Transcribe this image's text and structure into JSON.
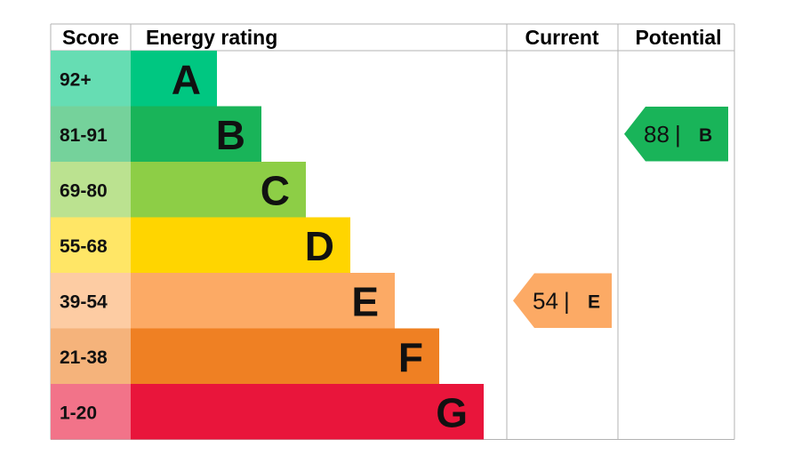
{
  "chart_data": {
    "type": "table",
    "headers": {
      "score": "Score",
      "rating": "Energy rating",
      "current": "Current",
      "potential": "Potential"
    },
    "bands": [
      {
        "letter": "A",
        "range": "92+",
        "color": "#00c781",
        "score_bg": "#66ddb3"
      },
      {
        "letter": "B",
        "range": "81-91",
        "color": "#19b459",
        "score_bg": "#75d29b"
      },
      {
        "letter": "C",
        "range": "69-80",
        "color": "#8dce46",
        "score_bg": "#bbe290"
      },
      {
        "letter": "D",
        "range": "55-68",
        "color": "#ffd500",
        "score_bg": "#ffe666"
      },
      {
        "letter": "E",
        "range": "39-54",
        "color": "#fcaa65",
        "score_bg": "#fdcca3"
      },
      {
        "letter": "F",
        "range": "21-38",
        "color": "#ef8023",
        "score_bg": "#f5b37b"
      },
      {
        "letter": "G",
        "range": "1-20",
        "color": "#e9153b",
        "score_bg": "#f27389"
      }
    ],
    "current": {
      "value": "54",
      "separator": "|",
      "letter": "E",
      "color": "#fcaa65"
    },
    "potential": {
      "value": "88",
      "separator": "|",
      "letter": "B",
      "color": "#19b459"
    },
    "grid_color": "#b3b3b3"
  }
}
